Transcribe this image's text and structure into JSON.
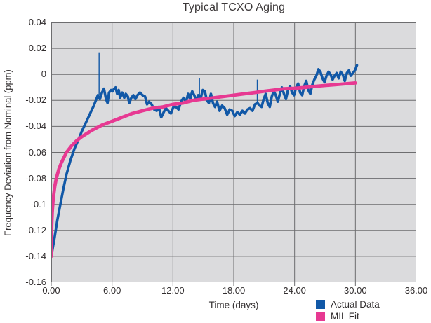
{
  "chart": {
    "title": "Typical TCXO Aging",
    "x_axis_label": "Time (days)",
    "y_axis_label": "Frequency Deviation from Nominal (ppm)"
  },
  "legend": {
    "items": [
      {
        "label": "Actual Data",
        "color": "#1158a7"
      },
      {
        "label": "MIL Fit",
        "color": "#e73992"
      }
    ]
  },
  "chart_data": {
    "type": "line",
    "title": "Typical TCXO Aging",
    "xlabel": "Time (days)",
    "ylabel": "Frequency Deviation from Nominal (ppm)",
    "xlim": [
      0,
      36
    ],
    "ylim": [
      -0.16,
      0.04
    ],
    "grid": true,
    "legend_position": "bottom-right",
    "colors": {
      "plot_bg": "#dbdbdd",
      "grid": "#6d6d6f",
      "text": "#322e2f",
      "actual": "#1158a7",
      "fit": "#e73992"
    },
    "x_gridlines": [
      6,
      12,
      18,
      24,
      30
    ],
    "y_gridlines": [
      0.02,
      0,
      -0.02,
      -0.04,
      -0.06,
      -0.08,
      -0.1,
      -0.12,
      -0.14
    ],
    "x_ticks": [
      {
        "v": 0,
        "label": "0.00"
      },
      {
        "v": 6,
        "label": "6.00"
      },
      {
        "v": 12,
        "label": "12.00"
      },
      {
        "v": 18,
        "label": "18.00"
      },
      {
        "v": 24,
        "label": "24.00"
      },
      {
        "v": 30,
        "label": "30.00"
      },
      {
        "v": 36,
        "label": "36.00"
      }
    ],
    "y_ticks": [
      {
        "v": 0.04,
        "label": "0.04"
      },
      {
        "v": 0.02,
        "label": "0.02"
      },
      {
        "v": 0,
        "label": "0"
      },
      {
        "v": -0.02,
        "label": "-0.02"
      },
      {
        "v": -0.04,
        "label": "-0.04"
      },
      {
        "v": -0.06,
        "label": "-0.06"
      },
      {
        "v": -0.08,
        "label": "-0.08"
      },
      {
        "v": -0.1,
        "label": "-0.1"
      },
      {
        "v": -0.12,
        "label": "-0.12"
      },
      {
        "v": -0.14,
        "label": "-0.14"
      },
      {
        "v": -0.16,
        "label": "-0.16"
      }
    ],
    "series": [
      {
        "name": "Actual Data",
        "color": "#1158a7",
        "width": 3.6,
        "points": [
          [
            0,
            -0.14
          ],
          [
            0.3,
            -0.127
          ],
          [
            0.6,
            -0.112
          ],
          [
            0.9,
            -0.1
          ],
          [
            1.2,
            -0.088
          ],
          [
            1.5,
            -0.077
          ],
          [
            1.9,
            -0.066
          ],
          [
            2.3,
            -0.057
          ],
          [
            2.7,
            -0.05
          ],
          [
            3.0,
            -0.044
          ],
          [
            3.3,
            -0.039
          ],
          [
            3.6,
            -0.034
          ],
          [
            3.9,
            -0.029
          ],
          [
            4.2,
            -0.024
          ],
          [
            4.45,
            -0.019
          ],
          [
            4.6,
            -0.016
          ],
          [
            4.8,
            -0.019
          ],
          [
            5.0,
            -0.014
          ],
          [
            5.2,
            -0.011
          ],
          [
            5.4,
            -0.019
          ],
          [
            5.55,
            -0.022
          ],
          [
            5.7,
            -0.014
          ],
          [
            5.9,
            -0.012
          ],
          [
            6.05,
            -0.013
          ],
          [
            6.2,
            -0.011
          ],
          [
            6.35,
            -0.01
          ],
          [
            6.5,
            -0.015
          ],
          [
            6.65,
            -0.012
          ],
          [
            6.8,
            -0.018
          ],
          [
            7.0,
            -0.014
          ],
          [
            7.2,
            -0.018
          ],
          [
            7.35,
            -0.015
          ],
          [
            7.55,
            -0.017
          ],
          [
            7.7,
            -0.022
          ],
          [
            7.9,
            -0.018
          ],
          [
            8.1,
            -0.016
          ],
          [
            8.3,
            -0.019
          ],
          [
            8.5,
            -0.016
          ],
          [
            8.75,
            -0.014
          ],
          [
            9.0,
            -0.016
          ],
          [
            9.25,
            -0.017
          ],
          [
            9.45,
            -0.023
          ],
          [
            9.65,
            -0.021
          ],
          [
            9.9,
            -0.023
          ],
          [
            10.15,
            -0.027
          ],
          [
            10.4,
            -0.028
          ],
          [
            10.6,
            -0.025
          ],
          [
            10.85,
            -0.033
          ],
          [
            11.1,
            -0.029
          ],
          [
            11.3,
            -0.026
          ],
          [
            11.55,
            -0.028
          ],
          [
            11.8,
            -0.03
          ],
          [
            12.05,
            -0.025
          ],
          [
            12.3,
            -0.025
          ],
          [
            12.55,
            -0.027
          ],
          [
            12.8,
            -0.021
          ],
          [
            13.05,
            -0.018
          ],
          [
            13.3,
            -0.021
          ],
          [
            13.5,
            -0.015
          ],
          [
            13.7,
            -0.019
          ],
          [
            13.9,
            -0.013
          ],
          [
            14.1,
            -0.016
          ],
          [
            14.3,
            -0.02
          ],
          [
            14.5,
            -0.016
          ],
          [
            14.75,
            -0.018
          ],
          [
            14.95,
            -0.012
          ],
          [
            15.15,
            -0.013
          ],
          [
            15.35,
            -0.02
          ],
          [
            15.55,
            -0.022
          ],
          [
            15.75,
            -0.015
          ],
          [
            15.95,
            -0.022
          ],
          [
            16.15,
            -0.025
          ],
          [
            16.35,
            -0.021
          ],
          [
            16.6,
            -0.028
          ],
          [
            16.85,
            -0.024
          ],
          [
            17.1,
            -0.026
          ],
          [
            17.35,
            -0.031
          ],
          [
            17.6,
            -0.027
          ],
          [
            17.85,
            -0.028
          ],
          [
            18.1,
            -0.032
          ],
          [
            18.35,
            -0.029
          ],
          [
            18.6,
            -0.031
          ],
          [
            18.85,
            -0.028
          ],
          [
            19.1,
            -0.03
          ],
          [
            19.35,
            -0.027
          ],
          [
            19.6,
            -0.026
          ],
          [
            19.85,
            -0.028
          ],
          [
            20.1,
            -0.023
          ],
          [
            20.35,
            -0.022
          ],
          [
            20.55,
            -0.024
          ],
          [
            20.75,
            -0.025
          ],
          [
            20.95,
            -0.019
          ],
          [
            21.15,
            -0.015
          ],
          [
            21.35,
            -0.022
          ],
          [
            21.55,
            -0.025
          ],
          [
            21.75,
            -0.017
          ],
          [
            21.95,
            -0.013
          ],
          [
            22.15,
            -0.016
          ],
          [
            22.35,
            -0.021
          ],
          [
            22.55,
            -0.015
          ],
          [
            22.75,
            -0.01
          ],
          [
            22.95,
            -0.015
          ],
          [
            23.15,
            -0.019
          ],
          [
            23.35,
            -0.012
          ],
          [
            23.55,
            -0.009
          ],
          [
            23.75,
            -0.014
          ],
          [
            23.95,
            -0.016
          ],
          [
            24.15,
            -0.01
          ],
          [
            24.35,
            -0.007
          ],
          [
            24.55,
            -0.014
          ],
          [
            24.75,
            -0.016
          ],
          [
            24.95,
            -0.009
          ],
          [
            25.15,
            -0.005
          ],
          [
            25.35,
            -0.012
          ],
          [
            25.55,
            -0.015
          ],
          [
            25.75,
            -0.008
          ],
          [
            25.95,
            -0.004
          ],
          [
            26.15,
            -0.001
          ],
          [
            26.35,
            0.004
          ],
          [
            26.55,
            0.002
          ],
          [
            26.75,
            -0.003
          ],
          [
            26.95,
            -0.006
          ],
          [
            27.15,
            -0.001
          ],
          [
            27.35,
            0.002
          ],
          [
            27.55,
            0.0
          ],
          [
            27.75,
            -0.004
          ],
          [
            27.95,
            -0.001
          ],
          [
            28.15,
            0.001
          ],
          [
            28.35,
            -0.003
          ],
          [
            28.55,
            0.002
          ],
          [
            28.75,
            0.0
          ],
          [
            28.95,
            -0.005
          ],
          [
            29.15,
            0.001
          ],
          [
            29.35,
            0.003
          ],
          [
            29.55,
            -0.001
          ],
          [
            29.75,
            0.001
          ],
          [
            29.95,
            0.003
          ],
          [
            30.15,
            0.007
          ]
        ]
      },
      {
        "name": "MIL Fit",
        "color": "#e73992",
        "width": 4.8,
        "points": [
          [
            0,
            -0.14
          ],
          [
            0.05,
            -0.116
          ],
          [
            0.1,
            -0.106
          ],
          [
            0.2,
            -0.095
          ],
          [
            0.35,
            -0.086
          ],
          [
            0.5,
            -0.08
          ],
          [
            0.75,
            -0.073
          ],
          [
            1,
            -0.068
          ],
          [
            1.5,
            -0.06
          ],
          [
            2,
            -0.055
          ],
          [
            2.5,
            -0.051
          ],
          [
            3,
            -0.048
          ],
          [
            4,
            -0.043
          ],
          [
            5,
            -0.039
          ],
          [
            6,
            -0.036
          ],
          [
            7,
            -0.033
          ],
          [
            8,
            -0.03
          ],
          [
            9,
            -0.028
          ],
          [
            10,
            -0.026
          ],
          [
            11,
            -0.025
          ],
          [
            12,
            -0.023
          ],
          [
            13,
            -0.022
          ],
          [
            14,
            -0.02
          ],
          [
            15,
            -0.019
          ],
          [
            16,
            -0.018
          ],
          [
            17,
            -0.017
          ],
          [
            18,
            -0.016
          ],
          [
            19,
            -0.015
          ],
          [
            20,
            -0.014
          ],
          [
            21,
            -0.013
          ],
          [
            22,
            -0.012
          ],
          [
            23,
            -0.011
          ],
          [
            24,
            -0.0107
          ],
          [
            25,
            -0.01
          ],
          [
            26,
            -0.0092
          ],
          [
            27,
            -0.0085
          ],
          [
            28,
            -0.0079
          ],
          [
            29,
            -0.0072
          ],
          [
            30,
            -0.0066
          ]
        ]
      }
    ],
    "spikes": [
      {
        "t": 4.72,
        "from": -0.016,
        "to": 0.017
      },
      {
        "t": 14.62,
        "from": -0.017,
        "to": -0.003
      },
      {
        "t": 20.32,
        "from": -0.022,
        "to": -0.004
      }
    ]
  }
}
